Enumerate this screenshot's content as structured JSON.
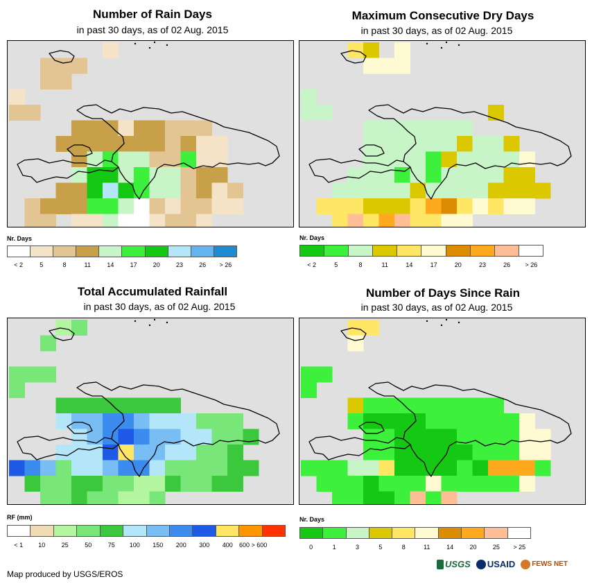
{
  "panels": [
    {
      "title": "Number of Rain Days",
      "subtitle": "in past 30 days, as of 02 Aug. 2015",
      "legend_title": "Nr. Days",
      "legend_colors": [
        "#ffffff",
        "#f5e3c8",
        "#e3c594",
        "#c9a04a",
        "#c8f5c8",
        "#3cf03c",
        "#14c814",
        "#b4e6fa",
        "#64b4f0",
        "#1e8cd2"
      ],
      "legend_ticks": [
        "< 2",
        "5",
        "8",
        "11",
        "14",
        "17",
        "20",
        "23",
        "26",
        "> 26"
      ],
      "palette": {
        "a": "#f5e3c8",
        "b": "#e3c594",
        "c": "#c9a04a",
        "g": "#c8f5c8",
        "G": "#3cf03c",
        "D": "#14c814",
        "l": "#b4e6fa",
        "w": "#ffffff"
      }
    },
    {
      "title": "Maximum Consecutive Dry Days",
      "subtitle": "in past 30 days, as of 02 Aug. 2015",
      "legend_title": "Nr. Days",
      "legend_colors": [
        "#14c814",
        "#3cf03c",
        "#c8f5c8",
        "#dcc800",
        "#ffe664",
        "#fffad2",
        "#dc8c00",
        "#ffaa1e",
        "#ffbe96",
        "#ffffff"
      ],
      "legend_ticks": [
        "< 2",
        "5",
        "8",
        "11",
        "14",
        "17",
        "20",
        "23",
        "26",
        "> 26"
      ],
      "palette": {
        "a": "#c8f5c8",
        "b": "#3cf03c",
        "c": "#14c814",
        "y": "#dcc800",
        "Y": "#ffe664",
        "p": "#fffad2",
        "o": "#dc8c00",
        "O": "#ffaa1e",
        "s": "#ffbe96",
        "w": "#ffffff"
      }
    },
    {
      "title": "Total Accumulated Rainfall",
      "subtitle": "in past 30 days, as of 02 Aug. 2015",
      "legend_title": "RF (mm)",
      "legend_colors": [
        "#ffffff",
        "#f0dcb4",
        "#b4f5a0",
        "#78e678",
        "#3cc83c",
        "#b4e6fa",
        "#78bef5",
        "#3c8cf0",
        "#1e5ae6",
        "#ffe664",
        "#ff9600",
        "#ff3200"
      ],
      "legend_ticks": [
        "< 1",
        "10",
        "25",
        "50",
        "75",
        "100",
        "150",
        "200",
        "300",
        "400",
        "600 > 600"
      ],
      "palette": {
        "a": "#b4f5a0",
        "b": "#78e678",
        "c": "#3cc83c",
        "l": "#b4e6fa",
        "m": "#78bef5",
        "n": "#3c8cf0",
        "N": "#1e5ae6",
        "y": "#ffe664",
        "t": "#f0dcb4"
      }
    },
    {
      "title": "Number of Days Since Rain",
      "subtitle": "in past 30 days, as of 02 Aug. 2015",
      "legend_title": "Nr. Days",
      "legend_colors": [
        "#14c814",
        "#3cf03c",
        "#c8f5c8",
        "#dcc800",
        "#ffe664",
        "#fffad2",
        "#dc8c00",
        "#ffaa1e",
        "#ffbe96",
        "#ffffff"
      ],
      "legend_ticks": [
        "0",
        "1",
        "3",
        "5",
        "8",
        "11",
        "14",
        "20",
        "25",
        "> 25"
      ],
      "palette": {
        "a": "#c8f5c8",
        "b": "#3cf03c",
        "c": "#14c814",
        "y": "#dcc800",
        "Y": "#ffe664",
        "p": "#fffad2",
        "o": "#dc8c00",
        "O": "#ffaa1e",
        "s": "#ffbe96",
        "w": "#ffffff"
      }
    }
  ],
  "grids": [
    [
      "......a.........",
      "..bbb...........",
      "..bb............",
      "a...............",
      "bb..............",
      "....cccaccbbb...",
      "...cccccccbcaa..",
      "....cgGggbbGaa..",
      "....gDDgGggbcc..",
      "...ccDlDGggbcab.",
      ".bcccGGgwbabbaa.",
      ".bb.aagwwabba...",
      "......awwa..a...",
      ".......w........"
    ],
    [
      "...Yy.p.........",
      "....ppp.........",
      "................",
      "a...............",
      "aa..........y...",
      "....aaaaaaa.....",
      "....aaaaaayaay..",
      "....aaaabyaaaap.",
      "...aaababaaaayy.",
      "..aaaaayaaaayyyy",
      ".YYYyyyYOoYpYpp.",
      "..YsYOsYYpp.....",
      "......OO........",
      "......pp........"
    ],
    [
      "...ab...........",
      "..b.............",
      "................",
      "bbb.............",
      "b...............",
      "...cccccccc.....",
      "...lmmnnmlllbbb.",
      "....lmnNnmmllbbc",
      "...lllNymmllbbc.",
      "Nnmbllmnnlbbbbcc",
      ".cbbccbbaacbbcc.",
      "..bbcbbaab......",
      ".......a........",
      "................"
    ],
    [
      "...YY...........",
      "...p............",
      "................",
      "bb..............",
      "b...............",
      "...ybbbbbbbbb...",
      "...bccccbbbbbbp.",
      "....bbccccbbbbpp",
      "....bbcccccbbbpp",
      "bbbaaYccccbcOOOb",
      ".bbbcbbbpbbbbbp.",
      "..bbccbsbs......",
      ".......OO.......",
      "........p......."
    ]
  ],
  "credit": "Map produced by USGS/EROS",
  "logos": [
    "USGS",
    "USAID",
    "FEWS NET"
  ]
}
